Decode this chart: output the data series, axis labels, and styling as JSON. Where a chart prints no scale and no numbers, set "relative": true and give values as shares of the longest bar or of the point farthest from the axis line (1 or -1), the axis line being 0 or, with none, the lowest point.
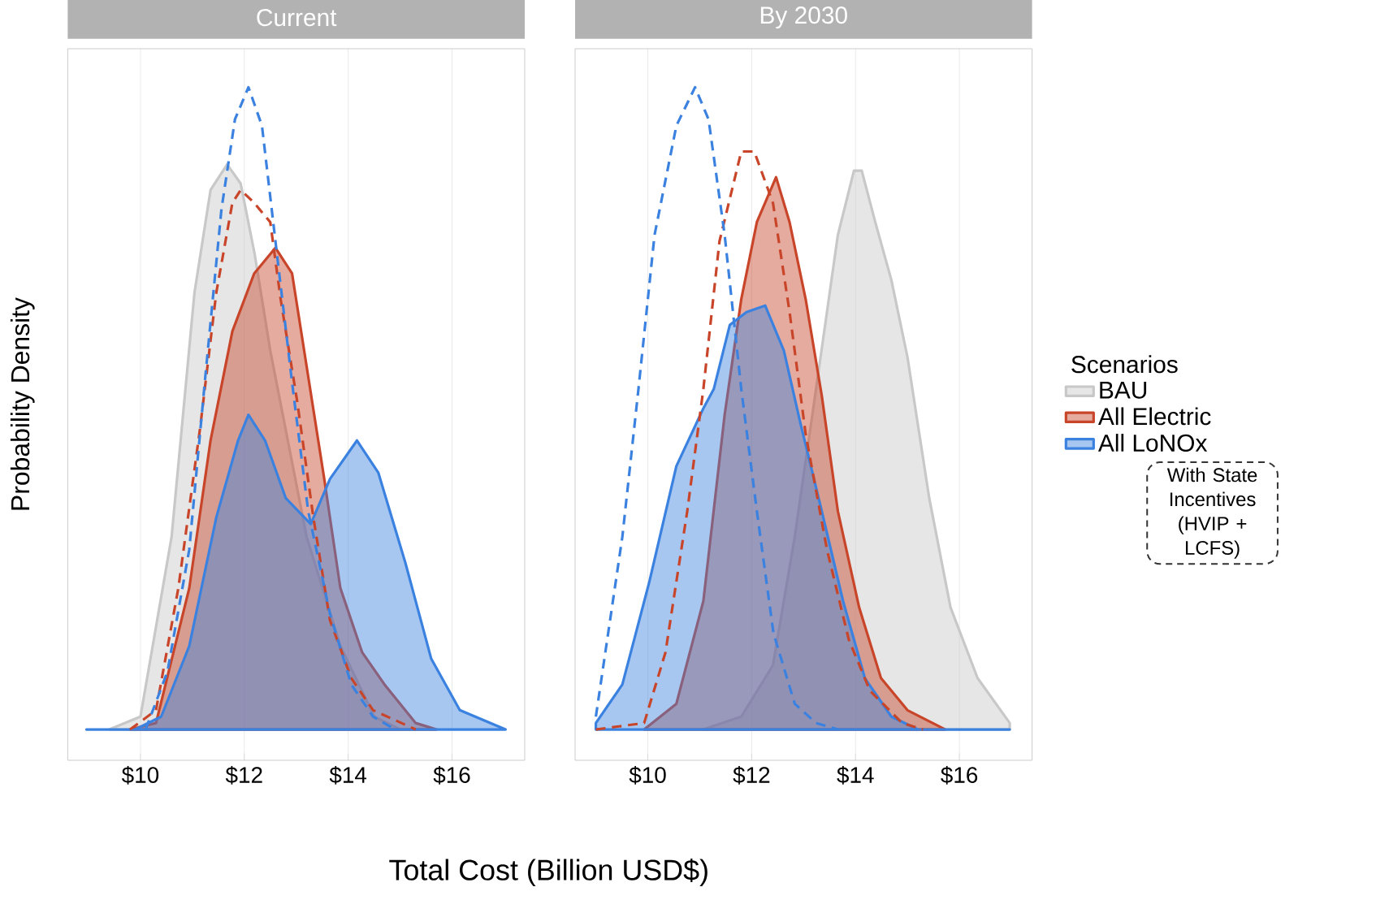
{
  "chart_data": [
    {
      "type": "area",
      "title": "Current",
      "xlabel": "Total Cost (Billion USD$)",
      "ylabel": "Probability Density",
      "relative": true,
      "grid": "x",
      "xlim": [
        8.6,
        17.4
      ],
      "xticks": [
        {
          "value": 10,
          "label": "$10"
        },
        {
          "value": 12,
          "label": "$12"
        },
        {
          "value": 14,
          "label": "$14"
        },
        {
          "value": 16,
          "label": "$16"
        }
      ],
      "series": [
        {
          "color": "#c8c8c8",
          "x": [
            9.4,
            10.0,
            10.6,
            11.04,
            11.35,
            11.67,
            11.93,
            12.2,
            12.5,
            13.2,
            13.85,
            14.5,
            15.0
          ],
          "values": [
            0,
            0.02,
            0.3,
            0.68,
            0.84,
            0.88,
            0.85,
            0.74,
            0.59,
            0.3,
            0.13,
            0.02,
            0
          ]
        },
        {
          "color": "#c8452a",
          "x": [
            9.8,
            10.3,
            10.94,
            11.35,
            11.77,
            12.19,
            12.6,
            12.92,
            13.23,
            13.54,
            13.85,
            14.27,
            14.7,
            15.3,
            15.7
          ],
          "values": [
            0,
            0.01,
            0.22,
            0.45,
            0.62,
            0.71,
            0.75,
            0.71,
            0.55,
            0.39,
            0.22,
            0.12,
            0.07,
            0.01,
            0
          ]
        },
        {
          "color": "#3b82e0",
          "x": [
            8.96,
            9.9,
            10.4,
            10.94,
            11.46,
            11.88,
            12.08,
            12.4,
            12.8,
            13.28,
            13.65,
            14.17,
            14.58,
            15.1,
            15.6,
            16.15,
            17.03
          ],
          "values": [
            0,
            0,
            0.02,
            0.13,
            0.33,
            0.45,
            0.49,
            0.45,
            0.36,
            0.32,
            0.39,
            0.45,
            0.4,
            0.26,
            0.11,
            0.03,
            0
          ]
        },
        {
          "type": "line",
          "line_style": "dashed",
          "color": "#c8452a",
          "x": [
            9.8,
            10.3,
            10.73,
            11.15,
            11.46,
            11.77,
            11.93,
            12.19,
            12.5,
            12.7,
            13.02,
            13.33,
            13.65,
            14.06,
            14.48,
            15.3
          ],
          "values": [
            0,
            0.03,
            0.22,
            0.47,
            0.68,
            0.82,
            0.84,
            0.82,
            0.79,
            0.67,
            0.51,
            0.33,
            0.17,
            0.08,
            0.03,
            0
          ]
        },
        {
          "type": "line",
          "line_style": "dashed",
          "color": "#3b82e0",
          "x": [
            10.1,
            10.52,
            10.94,
            11.25,
            11.56,
            11.82,
            12.08,
            12.34,
            12.6,
            12.92,
            13.23,
            13.65,
            14.06,
            14.48,
            14.9
          ],
          "values": [
            0,
            0.09,
            0.28,
            0.55,
            0.81,
            0.95,
            1.0,
            0.94,
            0.76,
            0.54,
            0.34,
            0.18,
            0.07,
            0.02,
            0
          ]
        }
      ]
    },
    {
      "type": "area",
      "title": "By 2030",
      "relative": true,
      "grid": "x",
      "legend": "right",
      "legend_title": "Scenarios",
      "annotations": [
        "With State Incentives (HVIP + LCFS)"
      ],
      "xlim": [
        8.6,
        17.4
      ],
      "xticks": [
        {
          "value": 10,
          "label": "$10"
        },
        {
          "value": 12,
          "label": "$12"
        },
        {
          "value": 14,
          "label": "$14"
        },
        {
          "value": 16,
          "label": "$16"
        }
      ],
      "series": [
        {
          "name": "BAU",
          "color": "#c8c8c8",
          "x": [
            11.07,
            11.8,
            12.41,
            12.83,
            13.24,
            13.66,
            13.97,
            14.12,
            14.38,
            14.69,
            15.0,
            15.42,
            15.83,
            16.35,
            16.97
          ],
          "values": [
            0,
            0.02,
            0.1,
            0.3,
            0.53,
            0.77,
            0.87,
            0.87,
            0.79,
            0.7,
            0.58,
            0.36,
            0.19,
            0.08,
            0.01
          ]
        },
        {
          "name": "All Electric",
          "color": "#c8452a",
          "x": [
            9.93,
            10.55,
            11.07,
            11.48,
            11.8,
            12.1,
            12.47,
            12.73,
            13.04,
            13.35,
            13.66,
            14.07,
            14.49,
            15.0,
            15.73
          ],
          "values": [
            0,
            0.04,
            0.2,
            0.49,
            0.67,
            0.79,
            0.86,
            0.79,
            0.67,
            0.52,
            0.34,
            0.19,
            0.08,
            0.03,
            0
          ]
        },
        {
          "name": "All LoNOx",
          "color": "#3b82e0",
          "x": [
            9.0,
            9.51,
            10.03,
            10.55,
            11.07,
            11.27,
            11.58,
            11.9,
            12.26,
            12.62,
            12.93,
            13.35,
            13.76,
            14.18,
            14.69,
            15.2,
            16.97
          ],
          "values": [
            0.01,
            0.07,
            0.23,
            0.41,
            0.5,
            0.53,
            0.63,
            0.65,
            0.66,
            0.59,
            0.48,
            0.34,
            0.2,
            0.08,
            0.02,
            0,
            0
          ]
        },
        {
          "type": "line",
          "line_style": "dashed",
          "color": "#c8452a",
          "x": [
            9.0,
            9.93,
            10.34,
            10.76,
            11.07,
            11.38,
            11.8,
            12.05,
            12.41,
            12.73,
            13.04,
            13.45,
            13.87,
            14.28,
            14.9,
            15.3
          ],
          "values": [
            0,
            0.01,
            0.12,
            0.34,
            0.53,
            0.76,
            0.9,
            0.9,
            0.82,
            0.65,
            0.46,
            0.28,
            0.14,
            0.06,
            0.01,
            0
          ]
        },
        {
          "type": "line",
          "line_style": "dashed",
          "color": "#3b82e0",
          "x": [
            9.0,
            9.51,
            9.82,
            10.13,
            10.55,
            10.91,
            11.17,
            11.48,
            11.8,
            12.1,
            12.42,
            12.83,
            13.24,
            13.66
          ],
          "values": [
            0.02,
            0.3,
            0.53,
            0.77,
            0.94,
            1.0,
            0.95,
            0.77,
            0.53,
            0.34,
            0.15,
            0.04,
            0.01,
            0
          ]
        }
      ]
    }
  ]
}
